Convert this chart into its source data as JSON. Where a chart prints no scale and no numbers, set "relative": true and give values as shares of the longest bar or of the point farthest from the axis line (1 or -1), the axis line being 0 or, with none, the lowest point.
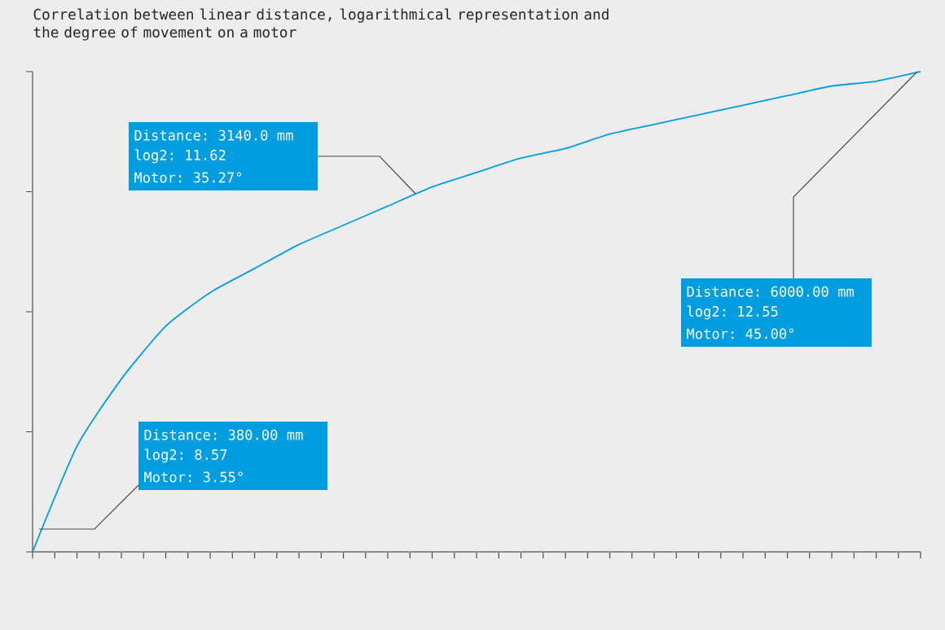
{
  "chart_data": {
    "type": "line",
    "title": "Correlation between linear distance, logarithmical representation and the degree of movement on a motor",
    "relative": true,
    "categories": [
      null,
      null,
      null,
      null,
      null,
      null,
      null,
      null,
      null,
      null,
      null,
      null,
      null,
      null,
      null,
      null,
      null,
      null,
      null,
      null,
      null
    ],
    "series": [
      {
        "color": "#009ee0",
        "values": [
          0,
          0.22,
          0.36,
          0.47,
          0.54,
          0.59,
          0.64,
          0.68,
          0.72,
          0.76,
          0.79,
          0.82,
          0.84,
          0.87,
          0.89,
          0.91,
          0.93,
          0.95,
          0.97,
          0.98,
          1
        ]
      }
    ],
    "annotations": [
      "Distance: 3140.0 mm",
      "log2: 11.62",
      "Motor: 35.27°",
      "Distance: 6000.00 mm",
      "log2: 12.55",
      "Motor: 45.00°",
      "Distance: 380.00 mm",
      "log2: 8.57",
      "Motor: 3.55°"
    ],
    "grid": false,
    "marker": "none",
    "line_style": "solid"
  }
}
